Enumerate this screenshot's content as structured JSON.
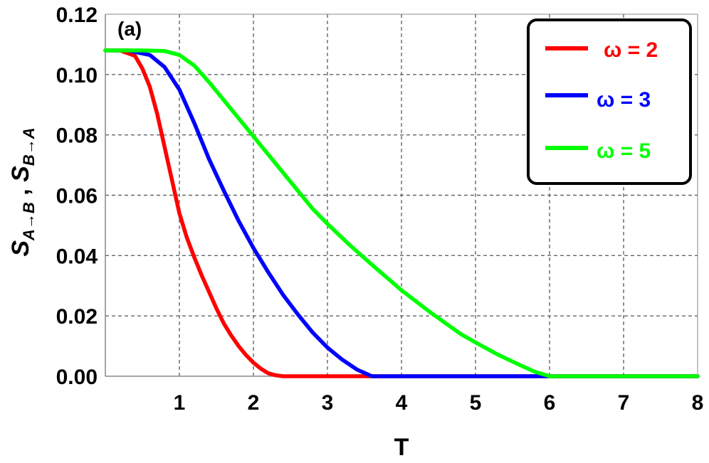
{
  "chart_data": {
    "type": "line",
    "panel_label": "(a)",
    "xlabel": "T",
    "ylabel": "S_{A→B} , S_{B→A}",
    "ylabel_parts": {
      "s1": "S",
      "sub1": "A→B",
      "sep": " , ",
      "s2": "S",
      "sub2": "B→A"
    },
    "xlim": [
      0,
      8
    ],
    "ylim": [
      0,
      0.12
    ],
    "xticks": [
      1,
      2,
      3,
      4,
      5,
      6,
      7,
      8
    ],
    "yticks": [
      0.0,
      0.02,
      0.04,
      0.06,
      0.08,
      0.1,
      0.12
    ],
    "xtick_labels": [
      "1",
      "2",
      "3",
      "4",
      "5",
      "6",
      "7",
      "8"
    ],
    "ytick_labels": [
      "0.00",
      "0.02",
      "0.04",
      "0.06",
      "0.08",
      "0.10",
      "0.12"
    ],
    "grid": true,
    "legend_position": "top-right",
    "series": [
      {
        "name": "ω = 2",
        "color": "#ff0000",
        "x": [
          0,
          0.2,
          0.4,
          0.5,
          0.6,
          0.7,
          0.8,
          0.9,
          1.0,
          1.1,
          1.2,
          1.3,
          1.4,
          1.5,
          1.6,
          1.7,
          1.8,
          1.9,
          2.0,
          2.1,
          2.2,
          2.3,
          2.4,
          3,
          4,
          5,
          6,
          7,
          8
        ],
        "y": [
          0.108,
          0.108,
          0.1062,
          0.102,
          0.096,
          0.087,
          0.076,
          0.065,
          0.054,
          0.046,
          0.0395,
          0.0335,
          0.028,
          0.0225,
          0.0175,
          0.0135,
          0.01,
          0.007,
          0.0045,
          0.0025,
          0.001,
          0.0003,
          0,
          0,
          0,
          0,
          0,
          0,
          0
        ]
      },
      {
        "name": "ω = 3",
        "color": "#0000ff",
        "x": [
          0,
          0.3,
          0.6,
          0.8,
          1.0,
          1.2,
          1.4,
          1.6,
          1.8,
          2.0,
          2.2,
          2.4,
          2.6,
          2.8,
          3.0,
          3.2,
          3.4,
          3.6,
          4,
          5,
          6,
          7,
          8
        ],
        "y": [
          0.108,
          0.108,
          0.1065,
          0.1025,
          0.095,
          0.084,
          0.072,
          0.0615,
          0.0515,
          0.0425,
          0.0345,
          0.027,
          0.0205,
          0.0145,
          0.0095,
          0.0055,
          0.0022,
          0,
          0,
          0,
          0,
          0,
          0
        ]
      },
      {
        "name": "ω = 5",
        "color": "#00ff00",
        "x": [
          0,
          0.5,
          0.8,
          1.0,
          1.2,
          1.4,
          1.6,
          1.8,
          2.0,
          2.2,
          2.5,
          2.8,
          3.0,
          3.3,
          3.6,
          4.0,
          4.4,
          4.8,
          5.0,
          5.3,
          5.6,
          5.8,
          6.0,
          7,
          8
        ],
        "y": [
          0.108,
          0.108,
          0.1078,
          0.1065,
          0.103,
          0.0975,
          0.0915,
          0.0855,
          0.0795,
          0.0735,
          0.0645,
          0.0555,
          0.0505,
          0.0435,
          0.037,
          0.0285,
          0.021,
          0.014,
          0.0112,
          0.0072,
          0.0037,
          0.0015,
          0,
          0,
          0
        ]
      }
    ]
  }
}
